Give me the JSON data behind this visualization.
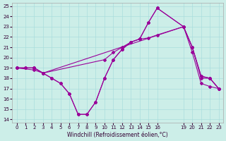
{
  "xlabel": "Windchill (Refroidissement éolien,°C)",
  "bg_color": "#cceee8",
  "line_color": "#990099",
  "grid_color": "#aadddd",
  "ylim": [
    14,
    25
  ],
  "xlim": [
    0,
    23
  ],
  "yticks": [
    14,
    15,
    16,
    17,
    18,
    19,
    20,
    21,
    22,
    23,
    24,
    25
  ],
  "xticks": [
    0,
    1,
    2,
    3,
    4,
    5,
    6,
    7,
    8,
    9,
    10,
    11,
    12,
    13,
    14,
    15,
    16,
    19,
    20,
    21,
    22,
    23
  ],
  "line1_x": [
    0,
    1,
    2,
    3,
    4,
    5,
    6,
    7,
    8,
    9,
    10,
    11,
    12,
    13,
    14,
    15,
    16,
    19,
    20,
    21,
    22,
    23
  ],
  "line1_y": [
    19,
    19,
    19,
    18.5,
    18,
    17.5,
    16.5,
    14.5,
    14.5,
    15.7,
    18,
    19.8,
    20.8,
    21.5,
    21.8,
    23.4,
    24.8,
    23,
    21,
    18.2,
    18,
    17
  ],
  "line2_x": [
    0,
    1,
    2,
    3,
    19,
    20,
    21,
    22,
    23
  ],
  "line2_y": [
    19,
    19,
    19,
    18.5,
    23,
    21,
    18,
    18,
    17
  ],
  "line3_x": [
    0,
    2,
    3,
    4,
    5,
    6,
    7,
    8,
    9,
    10,
    11,
    12,
    13,
    14,
    15,
    16,
    19,
    20,
    21,
    22,
    23
  ],
  "line3_y": [
    19,
    19,
    18.5,
    18,
    17.5,
    16.5,
    14.5,
    14.5,
    15.7,
    18,
    19.8,
    20.8,
    21.5,
    21.8,
    23.4,
    24.8,
    23,
    21,
    18.2,
    18,
    17
  ],
  "line4_x": [
    0,
    2,
    3,
    10,
    11,
    12,
    13,
    14,
    15,
    16,
    19,
    20,
    21,
    22,
    23
  ],
  "line4_y": [
    19,
    18.8,
    18.5,
    19.8,
    20.5,
    21.0,
    21.5,
    21.8,
    21.9,
    22.2,
    23,
    20.5,
    17.5,
    17.2,
    17
  ]
}
